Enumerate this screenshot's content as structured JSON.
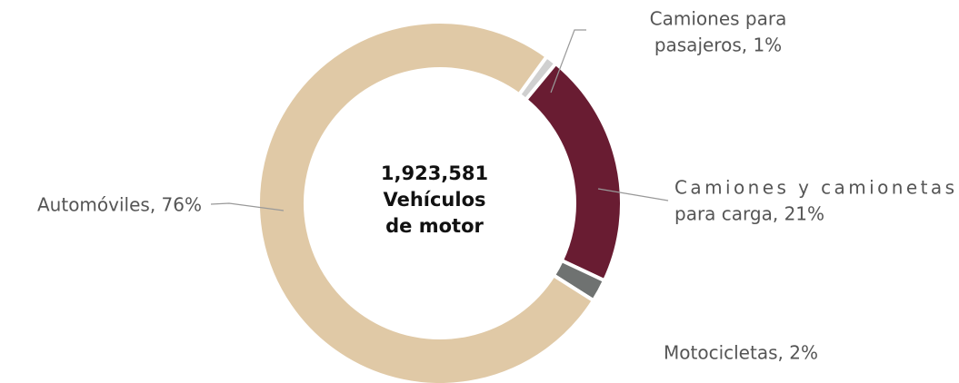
{
  "chart_data": {
    "type": "donut",
    "values": [
      1,
      21,
      2,
      76
    ],
    "value_labels": [
      [
        "Camiones para",
        "pasajeros, 1%"
      ],
      [
        "Camiones y camionetas",
        "para carga, 21%"
      ],
      [
        "Motocicletas, 2%"
      ],
      [
        "Automóviles, 76%"
      ]
    ],
    "colors": [
      "#d0d0d0",
      "#691c32",
      "#6f7271",
      "#e0c9a6"
    ],
    "total": {
      "value": 1923581,
      "label": "1,923,581"
    },
    "total_caption": [
      "Vehículos",
      "de motor"
    ]
  }
}
